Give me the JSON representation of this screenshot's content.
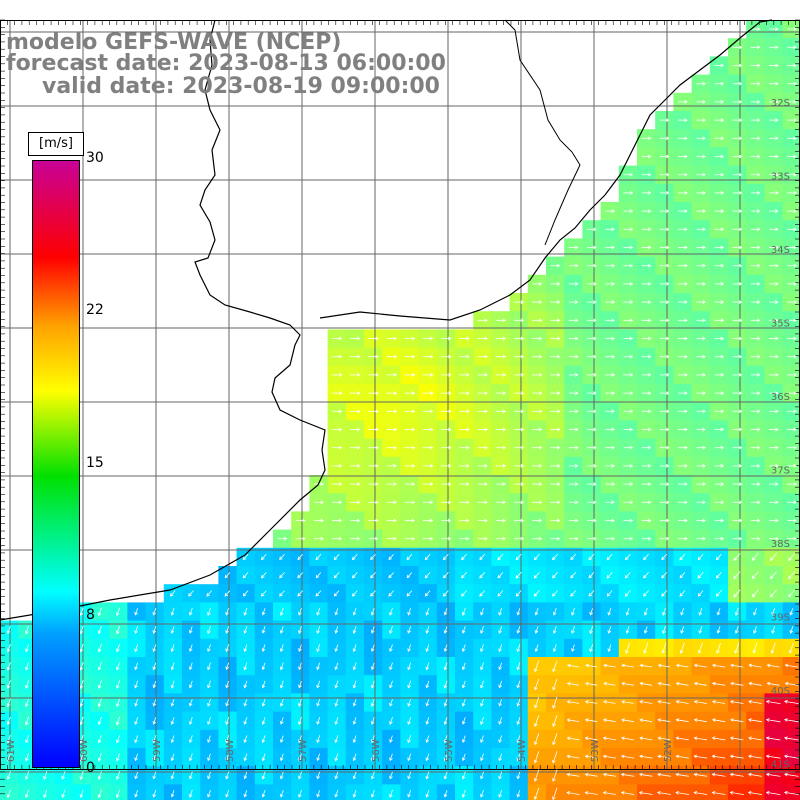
{
  "title": {
    "line1": "modelo GEFS-WAVE (NCEP)",
    "line2": "forecast date: 2023-08-13 06:00:00",
    "line3": "valid date: 2023-08-19 09:00:00"
  },
  "colorbar": {
    "unit": "[m/s]",
    "labels": [
      "30",
      "22",
      "15",
      "8",
      "0"
    ],
    "stops": [
      {
        "value": 0,
        "color": "#0000ff"
      },
      {
        "value": 8,
        "color": "#00ffff"
      },
      {
        "value": 15,
        "color": "#ffff00"
      },
      {
        "value": 22,
        "color": "#ff8000"
      },
      {
        "value": 26,
        "color": "#ff0000"
      },
      {
        "value": 30,
        "color": "#c80096"
      }
    ]
  },
  "map": {
    "region": "Rio de la Plata / South Atlantic",
    "lat_labels": [
      "32S",
      "33S",
      "34S",
      "35S",
      "36S",
      "37S",
      "38S",
      "39S",
      "40S",
      "41S"
    ],
    "lon_labels": [
      "61W",
      "60W",
      "59W",
      "58W",
      "57W",
      "56W",
      "55W",
      "54W",
      "53W",
      "52W"
    ]
  }
}
